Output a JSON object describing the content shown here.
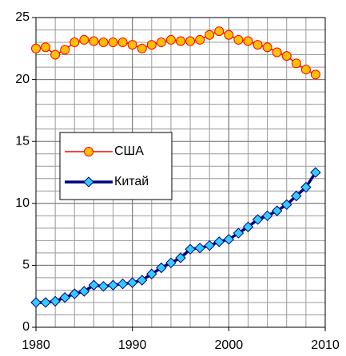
{
  "chart_data": {
    "type": "line",
    "x": [
      1980,
      1981,
      1982,
      1983,
      1984,
      1985,
      1986,
      1987,
      1988,
      1989,
      1990,
      1991,
      1992,
      1993,
      1994,
      1995,
      1996,
      1997,
      1998,
      1999,
      2000,
      2001,
      2002,
      2003,
      2004,
      2005,
      2006,
      2007,
      2008,
      2009
    ],
    "series": [
      {
        "name": "США",
        "color": "#ff0000",
        "marker": "circle",
        "marker_color": "#ffc000",
        "values": [
          22.5,
          22.6,
          22.0,
          22.4,
          23.0,
          23.2,
          23.1,
          23.0,
          23.0,
          23.0,
          22.8,
          22.5,
          22.8,
          23.0,
          23.2,
          23.1,
          23.1,
          23.2,
          23.6,
          23.9,
          23.6,
          23.2,
          23.1,
          22.8,
          22.6,
          22.2,
          21.9,
          21.3,
          20.8,
          20.4
        ]
      },
      {
        "name": "Китай",
        "color": "#000080",
        "marker": "diamond",
        "marker_color": "#33ccff",
        "values": [
          2.0,
          2.0,
          2.1,
          2.4,
          2.7,
          2.9,
          3.4,
          3.3,
          3.4,
          3.5,
          3.6,
          3.8,
          4.3,
          4.8,
          5.2,
          5.6,
          6.3,
          6.4,
          6.6,
          6.9,
          7.1,
          7.6,
          8.1,
          8.7,
          9.0,
          9.4,
          9.9,
          10.6,
          11.3,
          12.5
        ]
      }
    ],
    "xlim": [
      1980,
      2010
    ],
    "xticks": [
      1980,
      1990,
      2000,
      2010
    ],
    "ylim": [
      0,
      25
    ],
    "yticks": [
      0,
      5,
      10,
      15,
      20,
      25
    ],
    "xgrid": [
      1982,
      1984,
      1986,
      1988,
      1990,
      1992,
      1994,
      1996,
      1998,
      2000,
      2002,
      2004,
      2006,
      2008
    ],
    "ygrid": [
      1,
      2,
      3,
      4,
      5,
      6,
      7,
      8,
      9,
      10,
      11,
      12,
      13,
      14,
      15,
      16,
      17,
      18,
      19,
      20,
      21,
      22,
      23,
      24
    ],
    "grid": true,
    "legend": "center-left"
  }
}
